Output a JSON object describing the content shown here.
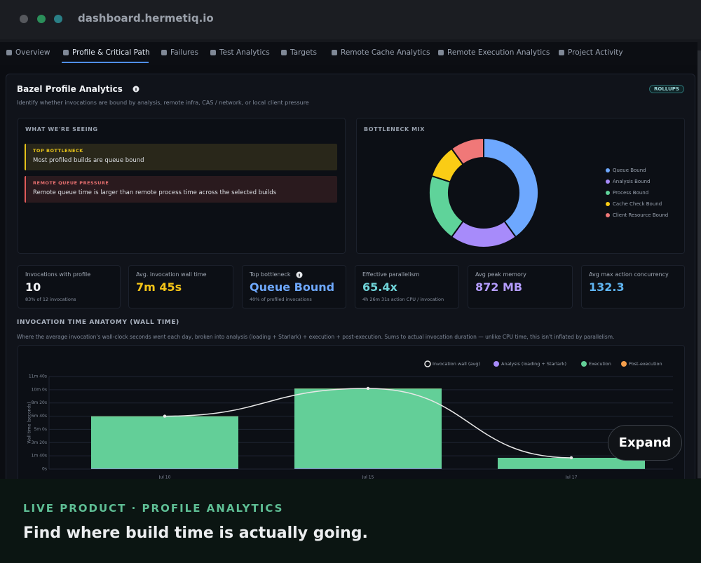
{
  "browser": {
    "url": "dashboard.hermetiq.io"
  },
  "tabs": [
    "Overview",
    "Profile & Critical Path",
    "Failures",
    "Test Analytics",
    "Targets",
    "Remote Cache Analytics",
    "Remote Execution Analytics",
    "Project Activity"
  ],
  "panel": {
    "title": "Bazel Profile Analytics",
    "badge": "ROLLUPS",
    "subtitle": "Identify whether invocations are bound by analysis, remote infra, CAS / network, or local client pressure"
  },
  "insights": {
    "title": "WHAT WE'RE SEEING",
    "alerts": [
      {
        "label": "TOP BOTTLENECK",
        "text": "Most profiled builds are queue bound"
      },
      {
        "label": "REMOTE QUEUE PRESSURE",
        "text": "Remote queue time is larger than remote process time across the selected builds"
      }
    ]
  },
  "stats": [
    {
      "label": "Invocations with profile",
      "value": "10",
      "note": "83% of 12 invocations"
    },
    {
      "label": "Avg. invocation wall time",
      "value": "7m 45s"
    },
    {
      "label": "Top bottleneck",
      "value": "Queue Bound",
      "note": "40% of profiled invocations"
    },
    {
      "label": "Effective parallelism",
      "value": "65.4x",
      "note": "4h 26m 31s action CPU / invocation"
    },
    {
      "label": "Avg peak memory",
      "value": "872 MB"
    },
    {
      "label": "Avg max action concurrency",
      "value": "132.3"
    }
  ],
  "chart_data": [
    {
      "type": "pie",
      "title": "BOTTLENECK MIX",
      "categories": [
        "Queue Bound",
        "Analysis Bound",
        "Process Bound",
        "Cache Check Bound",
        "Client Resource Bound"
      ],
      "values": [
        40,
        20,
        20,
        10,
        10
      ],
      "colors": [
        "#6ea8fe",
        "#a78bfa",
        "#5fd39a",
        "#facc15",
        "#f07878"
      ],
      "legend": "right"
    },
    {
      "type": "bar",
      "title": "INVOCATION TIME ANATOMY (WALL TIME)",
      "subtitle": "Where the average invocation's wall-clock seconds went each day, broken into analysis (loading + Starlark) + execution + post-execution. Sums to actual invocation duration — unlike CPU time, this isn't inflated by parallelism.",
      "y_label": "Wall time (seconds)",
      "categories": [
        "Jul 10",
        "Jul 15",
        "Jul 17"
      ],
      "stacked": true,
      "grid": true,
      "legend": "top-right",
      "series": [
        {
          "name": "Invocation wall (avg)",
          "type": "line",
          "color": "#e8e8e8",
          "values": [
            400,
            610,
            85
          ]
        },
        {
          "name": "Analysis (loading + Starlark)",
          "type": "bar",
          "color": "#a78bfa",
          "values": [
            3,
            4,
            1
          ]
        },
        {
          "name": "Execution",
          "type": "bar",
          "color": "#63cf98",
          "values": [
            396,
            605,
            84
          ]
        },
        {
          "name": "Post-execution",
          "type": "bar",
          "color": "#f59e4b",
          "values": [
            1,
            1,
            0
          ]
        }
      ],
      "ylim": [
        0,
        700
      ],
      "yticks": [
        {
          "value": 0,
          "label": "0s"
        },
        {
          "value": 100,
          "label": "1m 40s"
        },
        {
          "value": 200,
          "label": "3m 20s"
        },
        {
          "value": 300,
          "label": "5m 0s"
        },
        {
          "value": 400,
          "label": "6m 40s"
        },
        {
          "value": 500,
          "label": "8m 20s"
        },
        {
          "value": 600,
          "label": "10m 0s"
        },
        {
          "value": 700,
          "label": "11m 40s"
        }
      ]
    }
  ],
  "overlay": {
    "eyebrow": "LIVE PRODUCT · PROFILE ANALYTICS",
    "headline": "Find where build time is actually going.",
    "button": "Expand"
  }
}
